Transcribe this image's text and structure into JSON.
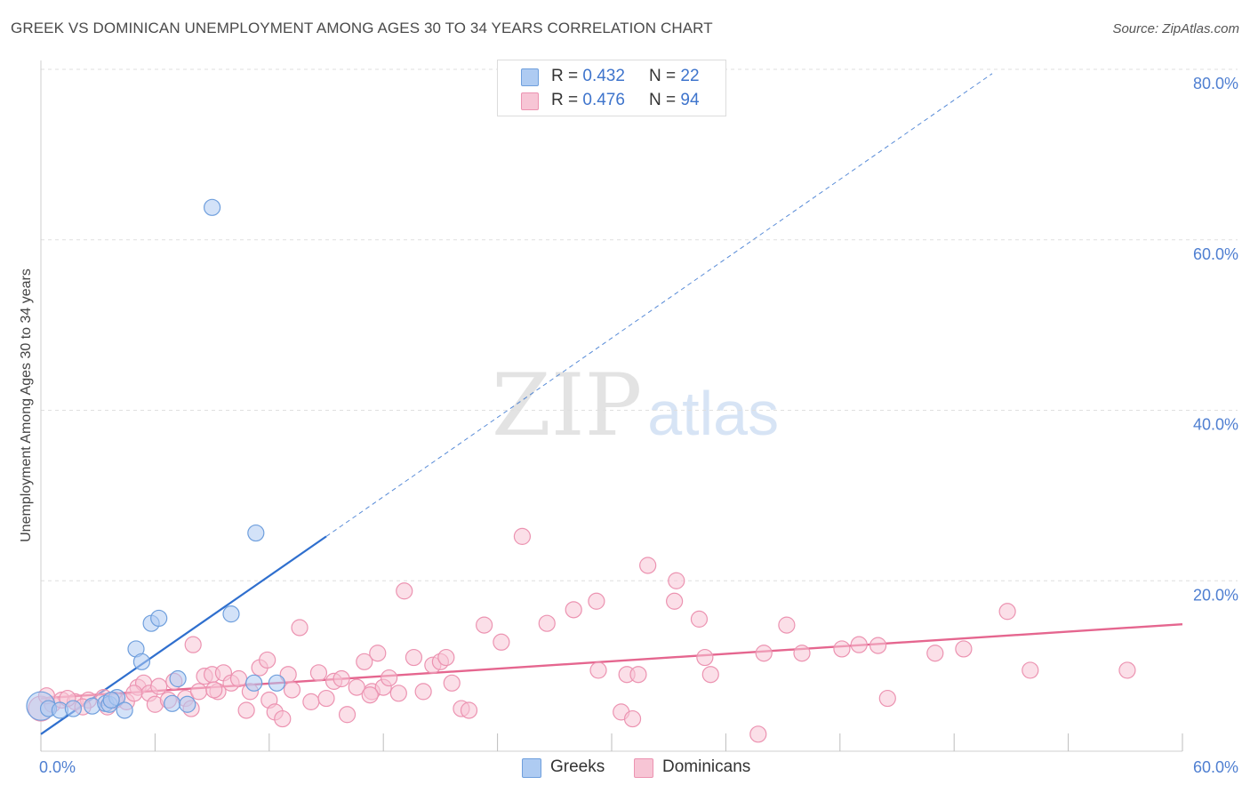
{
  "title": "GREEK VS DOMINICAN UNEMPLOYMENT AMONG AGES 30 TO 34 YEARS CORRELATION CHART",
  "source": "Source: ZipAtlas.com",
  "watermark": {
    "zip": "ZIP",
    "atlas": "atlas"
  },
  "legend": {
    "greeks": {
      "r_label": "R = ",
      "r_value": "0.432",
      "n_label": "N = ",
      "n_value": "22"
    },
    "dominicans": {
      "r_label": "R = ",
      "r_value": "0.476",
      "n_label": "N = ",
      "n_value": "94"
    }
  },
  "bottom_legend": {
    "greeks": "Greeks",
    "dominicans": "Dominicans"
  },
  "colors": {
    "greek_fill": "#aecbf2",
    "greek_stroke": "#6f9fdd",
    "greek_line": "#2f6fce",
    "dominican_fill": "#f7c5d5",
    "dominican_stroke": "#ec93b1",
    "dominican_line": "#e5668f",
    "tick": "#4f7fd1",
    "grid": "#dfdfdf"
  },
  "chart_data": {
    "type": "scatter",
    "title": "GREEK VS DOMINICAN UNEMPLOYMENT AMONG AGES 30 TO 34 YEARS CORRELATION CHART",
    "xlabel": "",
    "ylabel": "Unemployment Among Ages 30 to 34 years",
    "xlim": [
      0,
      60
    ],
    "ylim": [
      0,
      80
    ],
    "x_tick_labels": [
      "0.0%",
      "60.0%"
    ],
    "y_ticks": [
      20,
      40,
      60,
      80
    ],
    "y_tick_labels": [
      "20.0%",
      "40.0%",
      "60.0%",
      "80.0%"
    ],
    "series": [
      {
        "name": "Greeks",
        "r": 0.432,
        "n": 22,
        "trend": {
          "x0": 0,
          "y0": 2.0,
          "x1": 15.0,
          "y1": 25.2,
          "dash_to_x": 50.0,
          "dash_to_y": 79.5
        },
        "points": [
          [
            0.0,
            5.3,
            16
          ],
          [
            0.4,
            5.0,
            9
          ],
          [
            1.0,
            4.8,
            9
          ],
          [
            1.7,
            5.0,
            9
          ],
          [
            2.7,
            5.3,
            9
          ],
          [
            3.4,
            5.6,
            9
          ],
          [
            3.6,
            5.5,
            9
          ],
          [
            4.0,
            6.3,
            9
          ],
          [
            4.4,
            4.8,
            9
          ],
          [
            5.0,
            12.0,
            9
          ],
          [
            5.3,
            10.5,
            9
          ],
          [
            5.8,
            15.0,
            9
          ],
          [
            6.2,
            15.6,
            9
          ],
          [
            6.9,
            5.6,
            9
          ],
          [
            7.2,
            8.5,
            9
          ],
          [
            7.7,
            5.5,
            9
          ],
          [
            9.0,
            63.8,
            9
          ],
          [
            10.0,
            16.1,
            9
          ],
          [
            11.2,
            8.0,
            9
          ],
          [
            11.3,
            25.6,
            9
          ],
          [
            12.4,
            8.0,
            9
          ],
          [
            3.7,
            6.0,
            9
          ]
        ]
      },
      {
        "name": "Dominicans",
        "r": 0.476,
        "n": 94,
        "trend": {
          "x0": 0,
          "y0": 6.2,
          "x1": 60,
          "y1": 14.9
        },
        "points": [
          [
            0.0,
            5.0,
            14
          ],
          [
            0.6,
            5.5,
            9
          ],
          [
            1.1,
            6.0,
            9
          ],
          [
            1.8,
            5.8,
            9
          ],
          [
            2.5,
            6.0,
            9
          ],
          [
            3.3,
            6.3,
            9
          ],
          [
            3.5,
            5.2,
            9
          ],
          [
            3.9,
            6.0,
            9
          ],
          [
            4.5,
            5.8,
            9
          ],
          [
            5.1,
            7.5,
            9
          ],
          [
            5.4,
            8.0,
            9
          ],
          [
            5.7,
            6.8,
            9
          ],
          [
            6.0,
            5.5,
            9
          ],
          [
            6.2,
            7.6,
            9
          ],
          [
            6.7,
            6.0,
            9
          ],
          [
            7.0,
            8.2,
            9
          ],
          [
            7.6,
            6.2,
            9
          ],
          [
            7.9,
            5.0,
            9
          ],
          [
            8.0,
            12.5,
            9
          ],
          [
            8.3,
            7.0,
            9
          ],
          [
            8.6,
            8.8,
            9
          ],
          [
            9.0,
            9.0,
            9
          ],
          [
            9.3,
            7.0,
            9
          ],
          [
            9.6,
            9.2,
            9
          ],
          [
            10.0,
            8.0,
            9
          ],
          [
            10.4,
            8.5,
            9
          ],
          [
            10.8,
            4.8,
            9
          ],
          [
            11.0,
            7.0,
            9
          ],
          [
            11.5,
            9.8,
            9
          ],
          [
            11.9,
            10.7,
            9
          ],
          [
            12.0,
            6.0,
            9
          ],
          [
            12.3,
            4.6,
            9
          ],
          [
            12.7,
            3.8,
            9
          ],
          [
            13.2,
            7.2,
            9
          ],
          [
            13.6,
            14.5,
            9
          ],
          [
            14.2,
            5.8,
            9
          ],
          [
            14.6,
            9.2,
            9
          ],
          [
            15.0,
            6.2,
            9
          ],
          [
            15.4,
            8.2,
            9
          ],
          [
            15.8,
            8.5,
            9
          ],
          [
            16.1,
            4.3,
            9
          ],
          [
            16.6,
            7.5,
            9
          ],
          [
            17.0,
            10.5,
            9
          ],
          [
            17.4,
            7.0,
            9
          ],
          [
            17.7,
            11.5,
            9
          ],
          [
            18.0,
            7.5,
            9
          ],
          [
            18.3,
            8.6,
            9
          ],
          [
            18.8,
            6.8,
            9
          ],
          [
            19.1,
            18.8,
            9
          ],
          [
            19.6,
            11.0,
            9
          ],
          [
            20.1,
            7.0,
            9
          ],
          [
            20.6,
            10.1,
            9
          ],
          [
            21.0,
            10.5,
            9
          ],
          [
            21.3,
            11.0,
            9
          ],
          [
            21.6,
            8.0,
            9
          ],
          [
            22.1,
            5.0,
            9
          ],
          [
            22.5,
            4.8,
            9
          ],
          [
            23.3,
            14.8,
            9
          ],
          [
            24.2,
            12.8,
            9
          ],
          [
            25.3,
            25.2,
            9
          ],
          [
            26.6,
            15.0,
            9
          ],
          [
            28.0,
            16.6,
            9
          ],
          [
            29.2,
            17.6,
            9
          ],
          [
            29.3,
            9.5,
            9
          ],
          [
            30.5,
            4.6,
            9
          ],
          [
            30.8,
            9.0,
            9
          ],
          [
            31.1,
            3.8,
            9
          ],
          [
            31.4,
            9.0,
            9
          ],
          [
            31.9,
            21.8,
            9
          ],
          [
            33.3,
            17.6,
            9
          ],
          [
            33.4,
            20.0,
            9
          ],
          [
            34.6,
            15.5,
            9
          ],
          [
            34.9,
            11.0,
            9
          ],
          [
            35.2,
            9.0,
            9
          ],
          [
            37.7,
            2.0,
            9
          ],
          [
            38.0,
            11.5,
            9
          ],
          [
            39.2,
            14.8,
            9
          ],
          [
            40.0,
            11.5,
            9
          ],
          [
            42.1,
            12.0,
            9
          ],
          [
            43.0,
            12.5,
            9
          ],
          [
            44.0,
            12.4,
            9
          ],
          [
            44.5,
            6.2,
            9
          ],
          [
            47.0,
            11.5,
            9
          ],
          [
            48.5,
            12.0,
            9
          ],
          [
            50.8,
            16.4,
            9
          ],
          [
            52.0,
            9.5,
            9
          ],
          [
            57.1,
            9.5,
            9
          ],
          [
            2.2,
            5.2,
            9
          ],
          [
            9.1,
            7.2,
            9
          ],
          [
            13.0,
            9.0,
            9
          ],
          [
            17.3,
            6.6,
            9
          ],
          [
            0.3,
            6.5,
            9
          ],
          [
            1.4,
            6.2,
            9
          ],
          [
            4.9,
            6.8,
            9
          ]
        ]
      }
    ]
  }
}
